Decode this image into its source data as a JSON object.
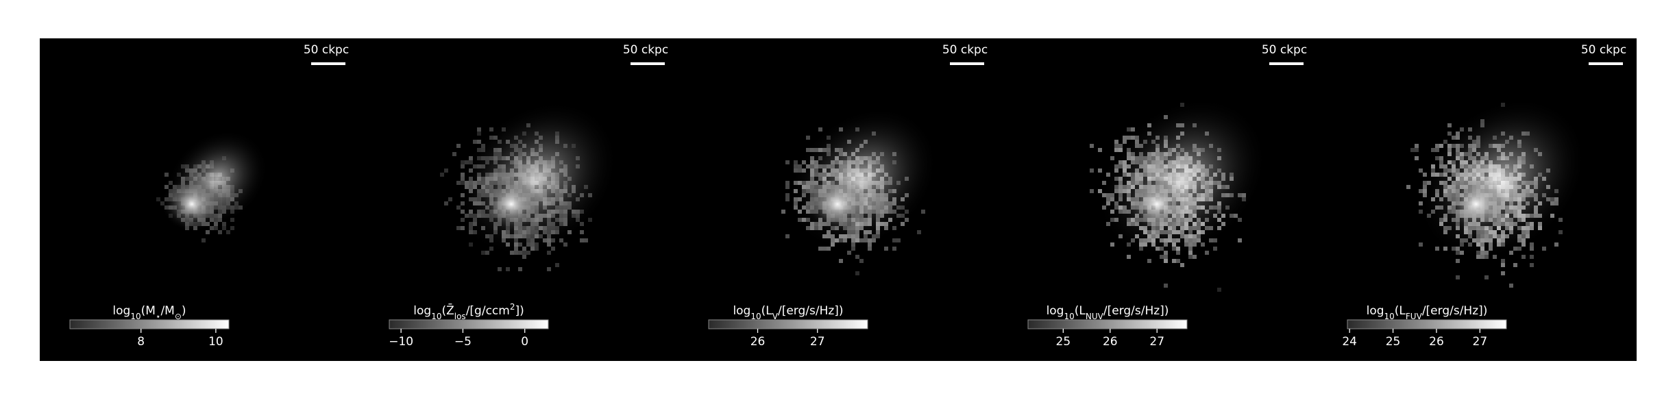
{
  "chart_data": [
    {
      "type": "image",
      "scalebar": "50 ckpc",
      "colorbar_label": [
        {
          "text": "log"
        },
        {
          "text": "10",
          "sub": true
        },
        {
          "text": "(M"
        },
        {
          "text": "⋆",
          "sub": true
        },
        {
          "text": "/M"
        },
        {
          "text": "⊙",
          "sub": true
        },
        {
          "text": ")"
        }
      ],
      "xlim": [
        6.1,
        10.35
      ],
      "xticks": [
        8,
        10
      ]
    },
    {
      "type": "image",
      "scalebar": "50 ckpc",
      "colorbar_label": [
        {
          "text": "log"
        },
        {
          "text": "10",
          "sub": true
        },
        {
          "text": "(Z̄"
        },
        {
          "text": "los",
          "sub": true
        },
        {
          "text": "/[g/ccm"
        },
        {
          "text": "2",
          "sup": true
        },
        {
          "text": "])"
        }
      ],
      "xlim": [
        -10.95,
        1.9
      ],
      "xticks": [
        {
          "value": -10,
          "label": "−10"
        },
        {
          "value": -5,
          "label": "−5"
        },
        0
      ]
    },
    {
      "type": "image",
      "scalebar": "50 ckpc",
      "colorbar_label": [
        {
          "text": "log"
        },
        {
          "text": "10",
          "sub": true
        },
        {
          "text": "(L"
        },
        {
          "text": "V",
          "sub": true
        },
        {
          "text": "/[erg/s/Hz])"
        }
      ],
      "xlim": [
        25.18,
        27.84
      ],
      "xticks": [
        26,
        27
      ]
    },
    {
      "type": "image",
      "scalebar": "50 ckpc",
      "colorbar_label": [
        {
          "text": "log"
        },
        {
          "text": "10",
          "sub": true
        },
        {
          "text": "(L"
        },
        {
          "text": "NUV",
          "sub": true
        },
        {
          "text": "/[erg/s/Hz])"
        }
      ],
      "xlim": [
        24.25,
        27.64
      ],
      "xticks": [
        25,
        26,
        27
      ]
    },
    {
      "type": "image",
      "scalebar": "50 ckpc",
      "colorbar_label": [
        {
          "text": "log"
        },
        {
          "text": "10",
          "sub": true
        },
        {
          "text": "(L"
        },
        {
          "text": "FUV",
          "sub": true
        },
        {
          "text": "/[erg/s/Hz])"
        }
      ],
      "xlim": [
        23.95,
        27.61
      ],
      "xticks": [
        24,
        25,
        26,
        27
      ]
    }
  ]
}
